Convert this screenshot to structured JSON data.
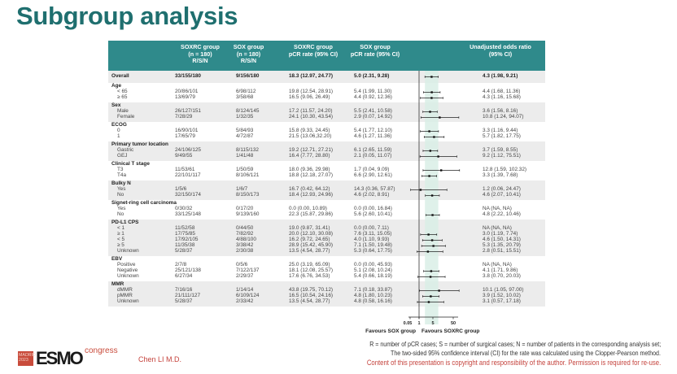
{
  "title": "Subgroup analysis",
  "header": {
    "col_soxrc_rsn": "SOXRC group\n(n = 180)\nR/S/N",
    "col_sox_rsn": "SOX group\n(n = 180)\nR/S/N",
    "col_soxrc_rate": "SOXRC group\npCR rate (95% CI)",
    "col_sox_rate": "SOX group\npCR rate (95% CI)",
    "col_or": "Unadjusted odds ratio\n(95% CI)"
  },
  "chart_data": {
    "type": "forest",
    "x_scale": "log",
    "x_ticks": [
      "0.05",
      "1",
      "5",
      "50"
    ],
    "x_tick_values": [
      0.05,
      1,
      5,
      50
    ],
    "reference_line": 1,
    "overall_ci_band": [
      1.98,
      9.21
    ],
    "xlabel_left": "Favours SOX group",
    "xlabel_right": "Favours SOXRC group",
    "colors": {
      "header": "#2f8a8b",
      "band": "#d9efe6",
      "stripe": "#ececec",
      "title": "#1f6f6f"
    },
    "overall": {
      "label": "Overall",
      "soxrc": "33/155/180",
      "sox": "9/156/180",
      "soxrc_rate": "18.3 (12.97, 24.77)",
      "sox_rate": "5.0 (2.31, 9.28)",
      "or_text": "4.3 (1.98, 9.21)",
      "or": 4.3,
      "lo": 1.98,
      "hi": 9.21
    },
    "groups": [
      {
        "label": "Age",
        "rows": [
          {
            "label": "< 65",
            "soxrc": "20/86/101",
            "sox": "6/98/112",
            "soxrc_rate": "19.8 (12.54, 28.91)",
            "sox_rate": "5.4 (1.99, 11.30)",
            "or_text": "4.4 (1.68, 11.36)",
            "or": 4.4,
            "lo": 1.68,
            "hi": 11.36
          },
          {
            "label": "≥ 65",
            "soxrc": "13/69/79",
            "sox": "3/58/68",
            "soxrc_rate": "16.5 (9.06, 26.49)",
            "sox_rate": "4.4 (0.92, 12.36)",
            "or_text": "4.3 (1.16, 15.68)",
            "or": 4.3,
            "lo": 1.16,
            "hi": 15.68
          }
        ]
      },
      {
        "label": "Sex",
        "rows": [
          {
            "label": "Male",
            "soxrc": "26/127/151",
            "sox": "8/124/145",
            "soxrc_rate": "17.2 (11.57, 24.20)",
            "sox_rate": "5.5 (2.41, 10.58)",
            "or_text": "3.6 (1.56, 8.16)",
            "or": 3.6,
            "lo": 1.56,
            "hi": 8.16
          },
          {
            "label": "Female",
            "soxrc": "7/28/29",
            "sox": "1/32/35",
            "soxrc_rate": "24.1 (10.30, 43.54)",
            "sox_rate": "2.9 (0.07, 14.92)",
            "or_text": "10.8 (1.24, 94.07)",
            "or": 10.8,
            "lo": 1.24,
            "hi": 94.07
          }
        ]
      },
      {
        "label": "ECOG",
        "rows": [
          {
            "label": "0",
            "soxrc": "16/90/101",
            "sox": "5/84/93",
            "soxrc_rate": "15.8 (9.33, 24.45)",
            "sox_rate": "5.4 (1.77, 12.10)",
            "or_text": "3.3 (1.16, 9.44)",
            "or": 3.3,
            "lo": 1.16,
            "hi": 9.44
          },
          {
            "label": "1",
            "soxrc": "17/65/79",
            "sox": "4/72/87",
            "soxrc_rate": "21.5 (13.06,32.20)",
            "sox_rate": "4.6 (1.27, 11.36)",
            "or_text": "5.7 (1.82, 17.75)",
            "or": 5.7,
            "lo": 1.82,
            "hi": 17.75
          }
        ]
      },
      {
        "label": "Primary tumor location",
        "rows": [
          {
            "label": "Gastric",
            "soxrc": "24/106/125",
            "sox": "8/115/132",
            "soxrc_rate": "19.2 (12.71, 27.21)",
            "sox_rate": "6.1 (2.65, 11.59)",
            "or_text": "3.7 (1.59, 8.55)",
            "or": 3.7,
            "lo": 1.59,
            "hi": 8.55
          },
          {
            "label": "GEJ",
            "soxrc": "9/49/55",
            "sox": "1/41/48",
            "soxrc_rate": "16.4 (7.77, 28.80)",
            "sox_rate": "2.1 (0.05, 11.07)",
            "or_text": "9.2 (1.12, 75.51)",
            "or": 9.2,
            "lo": 1.12,
            "hi": 75.51
          }
        ]
      },
      {
        "label": "Clinical T stage",
        "rows": [
          {
            "label": "T3",
            "soxrc": "11/53/61",
            "sox": "1/50/59",
            "soxrc_rate": "18.0 (9.36, 29.98)",
            "sox_rate": "1.7 (0.04, 9.09)",
            "or_text": "12.8 (1.59, 102.32)",
            "or": 12.8,
            "lo": 1.59,
            "hi": 102.32
          },
          {
            "label": "T4a",
            "soxrc": "22/101/117",
            "sox": "8/106/121",
            "soxrc_rate": "18.8 (12.18, 27.07)",
            "sox_rate": "6.6 (2.90, 12.61)",
            "or_text": "3.3 (1.39, 7.68)",
            "or": 3.3,
            "lo": 1.39,
            "hi": 7.68
          }
        ]
      },
      {
        "label": "Bulky N",
        "rows": [
          {
            "label": "Yes",
            "soxrc": "1/5/6",
            "sox": "1/6/7",
            "soxrc_rate": "16.7 (0.42, 64.12)",
            "sox_rate": "14.3 (0.36, 57.87)",
            "or_text": "1.2 (0.06, 24.47)",
            "or": 1.2,
            "lo": 0.06,
            "hi": 24.47
          },
          {
            "label": "No",
            "soxrc": "32/150/174",
            "sox": "8/150/173",
            "soxrc_rate": "18.4 (12.93, 24.96)",
            "sox_rate": "4.6 (2.02, 8.91)",
            "or_text": "4.6 (2.07, 10.41)",
            "or": 4.6,
            "lo": 2.07,
            "hi": 10.41
          }
        ]
      },
      {
        "label": "Signet-ring cell carcinoma",
        "rows": [
          {
            "label": "Yes",
            "soxrc": "0/30/32",
            "sox": "0/17/20",
            "soxrc_rate": "0.0 (0.00, 10.89)",
            "sox_rate": "0.0 (0.00, 16.84)",
            "or_text": "NA (NA, NA)",
            "or": null,
            "lo": null,
            "hi": null
          },
          {
            "label": "No",
            "soxrc": "33/125/148",
            "sox": "9/139/160",
            "soxrc_rate": "22.3 (15.87, 29.86)",
            "sox_rate": "5.6 (2.60, 10.41)",
            "or_text": "4.8 (2.22, 10.46)",
            "or": 4.8,
            "lo": 2.22,
            "hi": 10.46
          }
        ]
      },
      {
        "label": "PD-L1 CPS",
        "rows": [
          {
            "label": "< 1",
            "soxrc": "11/52/58",
            "sox": "0/44/50",
            "soxrc_rate": "19.0 (9.87, 31.41)",
            "sox_rate": "0.0 (0.00, 7.11)",
            "or_text": "NA (NA, NA)",
            "or": null,
            "lo": null,
            "hi": null
          },
          {
            "label": "≥ 1",
            "soxrc": "17/75/85",
            "sox": "7/82/92",
            "soxrc_rate": "20.0 (12.10, 30.08)",
            "sox_rate": "7.6 (3.11, 15.05)",
            "or_text": "3.0 (1.19, 7.74)",
            "or": 3.0,
            "lo": 1.19,
            "hi": 7.74
          },
          {
            "label": "< 5",
            "soxrc": "17/92/105",
            "sox": "4/88/100",
            "soxrc_rate": "16.2 (9.72, 24.65)",
            "sox_rate": "4.0 (1.10, 9.93)",
            "or_text": "4.6 (1.50, 14.31)",
            "or": 4.6,
            "lo": 1.5,
            "hi": 14.31
          },
          {
            "label": "≥ 5",
            "soxrc": "11/35/38",
            "sox": "3/38/42",
            "soxrc_rate": "28.9 (15.42, 45.90)",
            "sox_rate": "7.1 (1.50, 19.48)",
            "or_text": "5.3 (1.35, 20.79)",
            "or": 5.3,
            "lo": 1.35,
            "hi": 20.79
          },
          {
            "label": "Unknown",
            "soxrc": "5/28/37",
            "sox": "2/30/38",
            "soxrc_rate": "13.5 (4.54, 28.77)",
            "sox_rate": "5.3 (0.64, 17.75)",
            "or_text": "2.8 (0.51, 15.51)",
            "or": 2.8,
            "lo": 0.51,
            "hi": 15.51
          }
        ]
      },
      {
        "label": "EBV",
        "rows": [
          {
            "label": "Positive",
            "soxrc": "2/7/8",
            "sox": "0/5/6",
            "soxrc_rate": "25.0 (3.19, 65.09)",
            "sox_rate": "0.0 (0.00, 45.93)",
            "or_text": "NA (NA, NA)",
            "or": null,
            "lo": null,
            "hi": null
          },
          {
            "label": "Negative",
            "soxrc": "25/121/138",
            "sox": "7/122/137",
            "soxrc_rate": "18.1 (12.08, 25.57)",
            "sox_rate": "5.1 (2.08, 10.24)",
            "or_text": "4.1 (1.71, 9.86)",
            "or": 4.1,
            "lo": 1.71,
            "hi": 9.86
          },
          {
            "label": "Unknown",
            "soxrc": "6/27/34",
            "sox": "2/29/37",
            "soxrc_rate": "17.6 (6.76, 34.53)",
            "sox_rate": "5.4 (0.66, 18.19)",
            "or_text": "3.8 (0.70, 20.03)",
            "or": 3.8,
            "lo": 0.7,
            "hi": 20.03
          }
        ]
      },
      {
        "label": "MMR",
        "rows": [
          {
            "label": "dMMR",
            "soxrc": "7/16/16",
            "sox": "1/14/14",
            "soxrc_rate": "43.8 (19.75, 70.12)",
            "sox_rate": "7.1 (0.18, 33.87)",
            "or_text": "10.1 (1.05, 97.00)",
            "or": 10.1,
            "lo": 1.05,
            "hi": 97.0
          },
          {
            "label": "pMMR",
            "soxrc": "21/111/127",
            "sox": "6/109/124",
            "soxrc_rate": "16.5 (10.54, 24.16)",
            "sox_rate": "4.8 (1.80, 10.23)",
            "or_text": "3.9 (1.52, 10.02)",
            "or": 3.9,
            "lo": 1.52,
            "hi": 10.02
          },
          {
            "label": "Unknown",
            "soxrc": "5/28/37",
            "sox": "2/33/42",
            "soxrc_rate": "13.5 (4.54, 28.77)",
            "sox_rate": "4.8 (0.58, 16.16)",
            "or_text": "3.1 (0.57, 17.18)",
            "or": 3.1,
            "lo": 0.57,
            "hi": 17.18
          }
        ]
      }
    ]
  },
  "footer": {
    "note1": "R = number of pCR cases; S = number of surgical cases; N = number of patients in the corresponding analysis set;",
    "note2": "The two-sided 95% confidence interval (CI) for the rate was calculated using the Clopper-Pearson method.",
    "copyright": "Content of this presentation is copyright and responsibility of the author. Permission is required for re-use.",
    "author": "Chen LI M.D.",
    "logo": {
      "city": "MADRID",
      "year": "2023",
      "brand": "ESMO",
      "suffix": "congress"
    }
  }
}
